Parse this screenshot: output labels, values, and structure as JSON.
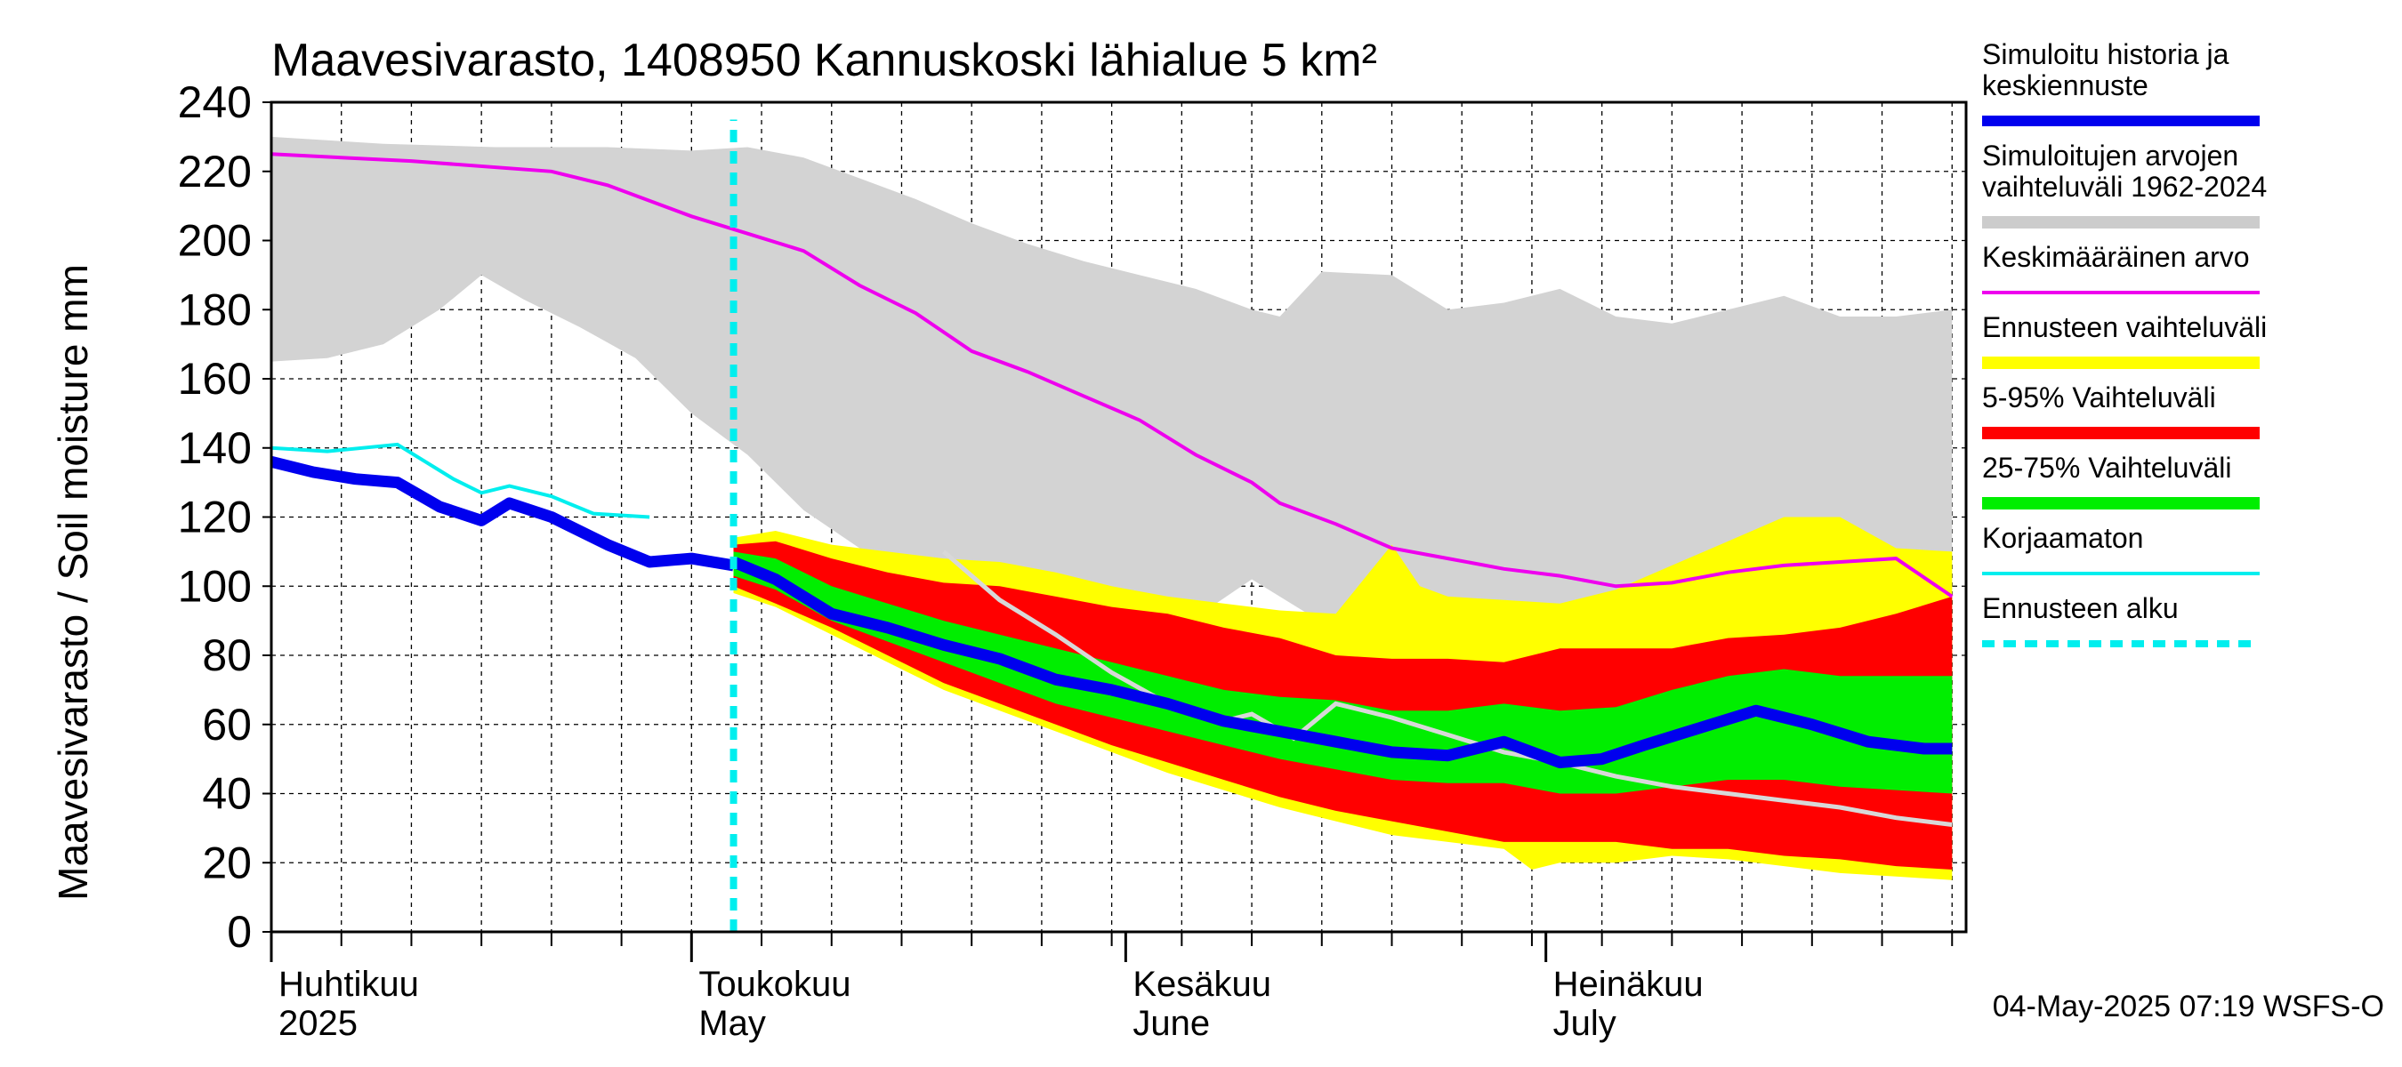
{
  "chart_data": {
    "type": "area",
    "title": "Maavesivarasto, 1408950 Kannuskoski lähialue 5 km²",
    "ylabel": "Maavesivarasto / Soil moisture   mm",
    "ylim": [
      0,
      240
    ],
    "yticks": [
      0,
      20,
      40,
      60,
      80,
      100,
      120,
      140,
      160,
      180,
      200,
      220,
      240
    ],
    "x_start": "2025-04-01",
    "x_end": "2025-07-31",
    "forecast_start_day": 33,
    "month_labels": [
      {
        "day": 0,
        "fi": "Huhtikuu",
        "en": "2025"
      },
      {
        "day": 30,
        "fi": "Toukokuu",
        "en": "May"
      },
      {
        "day": 61,
        "fi": "Kesäkuu",
        "en": "June"
      },
      {
        "day": 91,
        "fi": "Heinäkuu",
        "en": "July"
      }
    ],
    "footer": "04-May-2025 07:19 WSFS-O",
    "legend": [
      {
        "label": "Simuloitu historia ja keskiennuste",
        "color": "#0000ee",
        "style": "thick"
      },
      {
        "label": "Simuloitujen arvojen vaihteluväli 1962-2024",
        "color": "#cccccc",
        "style": "band"
      },
      {
        "label": "Keskimääräinen arvo",
        "color": "#ee00ee",
        "style": "line"
      },
      {
        "label": "Ennusteen vaihteluväli",
        "color": "#ffff00",
        "style": "band"
      },
      {
        "label": "5-95% Vaihteluväli",
        "color": "#ff0000",
        "style": "band"
      },
      {
        "label": "25-75% Vaihteluväli",
        "color": "#00ee00",
        "style": "band"
      },
      {
        "label": "Korjaamaton",
        "color": "#00eeee",
        "style": "line"
      },
      {
        "label": "Ennusteen alku",
        "color": "#00eeee",
        "style": "dashed"
      }
    ],
    "series": [
      {
        "name": "hist_upper",
        "points": [
          [
            0,
            230
          ],
          [
            8,
            228
          ],
          [
            16,
            227
          ],
          [
            24,
            227
          ],
          [
            30,
            226
          ],
          [
            34,
            227
          ],
          [
            38,
            224
          ],
          [
            42,
            218
          ],
          [
            46,
            212
          ],
          [
            50,
            205
          ],
          [
            54,
            199
          ],
          [
            58,
            194
          ],
          [
            62,
            190
          ],
          [
            66,
            186
          ],
          [
            70,
            180
          ],
          [
            72,
            178
          ],
          [
            75,
            191
          ],
          [
            80,
            190
          ],
          [
            84,
            180
          ],
          [
            88,
            182
          ],
          [
            92,
            186
          ],
          [
            96,
            178
          ],
          [
            100,
            176
          ],
          [
            104,
            180
          ],
          [
            108,
            184
          ],
          [
            112,
            178
          ],
          [
            116,
            178
          ],
          [
            120,
            180
          ]
        ]
      },
      {
        "name": "hist_lower",
        "points": [
          [
            0,
            165
          ],
          [
            4,
            166
          ],
          [
            8,
            170
          ],
          [
            12,
            180
          ],
          [
            15,
            190
          ],
          [
            18,
            183
          ],
          [
            22,
            175
          ],
          [
            26,
            166
          ],
          [
            30,
            150
          ],
          [
            34,
            138
          ],
          [
            38,
            122
          ],
          [
            42,
            111
          ],
          [
            46,
            102
          ],
          [
            50,
            92
          ],
          [
            54,
            99
          ],
          [
            58,
            94
          ],
          [
            62,
            96
          ],
          [
            66,
            91
          ],
          [
            70,
            102
          ],
          [
            74,
            92
          ],
          [
            80,
            91
          ],
          [
            84,
            95
          ],
          [
            88,
            94
          ],
          [
            92,
            91
          ],
          [
            96,
            95
          ],
          [
            100,
            98
          ],
          [
            104,
            96
          ],
          [
            108,
            99
          ],
          [
            112,
            98
          ],
          [
            116,
            97
          ],
          [
            120,
            97
          ]
        ]
      },
      {
        "name": "mean",
        "points": [
          [
            0,
            225
          ],
          [
            10,
            223
          ],
          [
            20,
            220
          ],
          [
            24,
            216
          ],
          [
            28,
            210
          ],
          [
            30,
            207
          ],
          [
            34,
            202
          ],
          [
            38,
            197
          ],
          [
            42,
            187
          ],
          [
            46,
            179
          ],
          [
            50,
            168
          ],
          [
            54,
            162
          ],
          [
            58,
            155
          ],
          [
            62,
            148
          ],
          [
            66,
            138
          ],
          [
            70,
            130
          ],
          [
            72,
            124
          ],
          [
            76,
            118
          ],
          [
            80,
            111
          ],
          [
            84,
            108
          ],
          [
            88,
            105
          ],
          [
            92,
            103
          ],
          [
            96,
            100
          ],
          [
            100,
            101
          ],
          [
            104,
            104
          ],
          [
            108,
            106
          ],
          [
            112,
            107
          ],
          [
            116,
            108
          ],
          [
            120,
            97
          ]
        ]
      },
      {
        "name": "sim_history",
        "points": [
          [
            0,
            136
          ],
          [
            3,
            133
          ],
          [
            6,
            131
          ],
          [
            9,
            130
          ],
          [
            12,
            123
          ],
          [
            15,
            119
          ],
          [
            17,
            124
          ],
          [
            20,
            120
          ],
          [
            24,
            112
          ],
          [
            27,
            107
          ],
          [
            30,
            108
          ],
          [
            33,
            106
          ]
        ]
      },
      {
        "name": "uncorrected",
        "points": [
          [
            0,
            140
          ],
          [
            4,
            139
          ],
          [
            9,
            141
          ],
          [
            13,
            131
          ],
          [
            15,
            127
          ],
          [
            17,
            129
          ],
          [
            20,
            126
          ],
          [
            23,
            121
          ],
          [
            27,
            120
          ]
        ]
      },
      {
        "name": "forecast_median",
        "points": [
          [
            33,
            107
          ],
          [
            36,
            102
          ],
          [
            40,
            92
          ],
          [
            44,
            88
          ],
          [
            48,
            83
          ],
          [
            52,
            79
          ],
          [
            56,
            73
          ],
          [
            60,
            70
          ],
          [
            64,
            66
          ],
          [
            68,
            61
          ],
          [
            72,
            58
          ],
          [
            76,
            55
          ],
          [
            80,
            52
          ],
          [
            84,
            51
          ],
          [
            88,
            55
          ],
          [
            92,
            49
          ],
          [
            95,
            50
          ],
          [
            98,
            54
          ],
          [
            102,
            59
          ],
          [
            106,
            64
          ],
          [
            110,
            60
          ],
          [
            114,
            55
          ],
          [
            118,
            53
          ],
          [
            120,
            53
          ]
        ]
      },
      {
        "name": "gray_trace",
        "points": [
          [
            48,
            110
          ],
          [
            52,
            96
          ],
          [
            56,
            86
          ],
          [
            60,
            75
          ],
          [
            64,
            66
          ],
          [
            68,
            61
          ],
          [
            70,
            63
          ],
          [
            73,
            56
          ],
          [
            76,
            66
          ],
          [
            80,
            62
          ],
          [
            84,
            57
          ],
          [
            88,
            52
          ],
          [
            92,
            49
          ],
          [
            96,
            45
          ],
          [
            100,
            42
          ],
          [
            104,
            40
          ],
          [
            108,
            38
          ],
          [
            112,
            36
          ],
          [
            116,
            33
          ],
          [
            120,
            31
          ]
        ]
      },
      {
        "name": "yellow_upper",
        "points": [
          [
            33,
            114
          ],
          [
            36,
            116
          ],
          [
            40,
            112
          ],
          [
            44,
            110
          ],
          [
            48,
            108
          ],
          [
            52,
            107
          ],
          [
            56,
            104
          ],
          [
            60,
            100
          ],
          [
            64,
            97
          ],
          [
            68,
            95
          ],
          [
            72,
            93
          ],
          [
            76,
            92
          ],
          [
            80,
            112
          ],
          [
            82,
            100
          ],
          [
            84,
            97
          ],
          [
            88,
            96
          ],
          [
            92,
            95
          ],
          [
            96,
            99
          ],
          [
            100,
            106
          ],
          [
            104,
            113
          ],
          [
            108,
            120
          ],
          [
            112,
            120
          ],
          [
            116,
            111
          ],
          [
            120,
            110
          ]
        ]
      },
      {
        "name": "yellow_lower",
        "points": [
          [
            33,
            98
          ],
          [
            36,
            94
          ],
          [
            40,
            86
          ],
          [
            44,
            78
          ],
          [
            48,
            70
          ],
          [
            52,
            64
          ],
          [
            56,
            58
          ],
          [
            60,
            52
          ],
          [
            64,
            46
          ],
          [
            68,
            41
          ],
          [
            72,
            36
          ],
          [
            76,
            32
          ],
          [
            80,
            28
          ],
          [
            84,
            26
          ],
          [
            88,
            24
          ],
          [
            90,
            18
          ],
          [
            92,
            20
          ],
          [
            96,
            20
          ],
          [
            100,
            22
          ],
          [
            104,
            21
          ],
          [
            108,
            19
          ],
          [
            112,
            17
          ],
          [
            116,
            16
          ],
          [
            120,
            15
          ]
        ]
      },
      {
        "name": "red_upper",
        "points": [
          [
            33,
            112
          ],
          [
            36,
            113
          ],
          [
            40,
            108
          ],
          [
            44,
            104
          ],
          [
            48,
            101
          ],
          [
            52,
            100
          ],
          [
            56,
            97
          ],
          [
            60,
            94
          ],
          [
            64,
            92
          ],
          [
            68,
            88
          ],
          [
            72,
            85
          ],
          [
            76,
            80
          ],
          [
            80,
            79
          ],
          [
            84,
            79
          ],
          [
            88,
            78
          ],
          [
            92,
            82
          ],
          [
            96,
            82
          ],
          [
            100,
            82
          ],
          [
            104,
            85
          ],
          [
            108,
            86
          ],
          [
            112,
            88
          ],
          [
            116,
            92
          ],
          [
            120,
            97
          ]
        ]
      },
      {
        "name": "red_lower",
        "points": [
          [
            33,
            100
          ],
          [
            36,
            95
          ],
          [
            40,
            88
          ],
          [
            44,
            80
          ],
          [
            48,
            72
          ],
          [
            52,
            66
          ],
          [
            56,
            60
          ],
          [
            60,
            54
          ],
          [
            64,
            49
          ],
          [
            68,
            44
          ],
          [
            72,
            39
          ],
          [
            76,
            35
          ],
          [
            80,
            32
          ],
          [
            84,
            29
          ],
          [
            88,
            26
          ],
          [
            92,
            26
          ],
          [
            96,
            26
          ],
          [
            100,
            24
          ],
          [
            104,
            24
          ],
          [
            108,
            22
          ],
          [
            112,
            21
          ],
          [
            116,
            19
          ],
          [
            120,
            18
          ]
        ]
      },
      {
        "name": "green_upper",
        "points": [
          [
            33,
            110
          ],
          [
            36,
            108
          ],
          [
            40,
            100
          ],
          [
            44,
            95
          ],
          [
            48,
            90
          ],
          [
            52,
            86
          ],
          [
            56,
            82
          ],
          [
            60,
            78
          ],
          [
            64,
            74
          ],
          [
            68,
            70
          ],
          [
            72,
            68
          ],
          [
            76,
            67
          ],
          [
            80,
            64
          ],
          [
            84,
            64
          ],
          [
            88,
            66
          ],
          [
            92,
            64
          ],
          [
            96,
            65
          ],
          [
            100,
            70
          ],
          [
            104,
            74
          ],
          [
            108,
            76
          ],
          [
            112,
            74
          ],
          [
            116,
            74
          ],
          [
            120,
            74
          ]
        ]
      },
      {
        "name": "green_lower",
        "points": [
          [
            33,
            103
          ],
          [
            36,
            99
          ],
          [
            40,
            90
          ],
          [
            44,
            84
          ],
          [
            48,
            78
          ],
          [
            52,
            72
          ],
          [
            56,
            66
          ],
          [
            60,
            62
          ],
          [
            64,
            58
          ],
          [
            68,
            54
          ],
          [
            72,
            50
          ],
          [
            76,
            47
          ],
          [
            80,
            44
          ],
          [
            84,
            43
          ],
          [
            88,
            43
          ],
          [
            92,
            40
          ],
          [
            96,
            40
          ],
          [
            100,
            42
          ],
          [
            104,
            44
          ],
          [
            108,
            44
          ],
          [
            112,
            42
          ],
          [
            116,
            41
          ],
          [
            120,
            40
          ]
        ]
      }
    ]
  }
}
